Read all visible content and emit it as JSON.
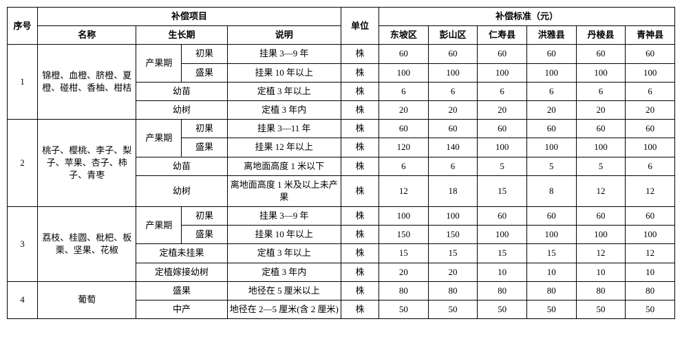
{
  "head": {
    "seq": "序号",
    "comp_item": "补偿项目",
    "name": "名称",
    "growth": "生长期",
    "desc": "说明",
    "unit": "单位",
    "comp_std": "补偿标准（元）",
    "regions": [
      "东坡区",
      "彭山区",
      "仁寿县",
      "洪雅县",
      "丹棱县",
      "青神县"
    ]
  },
  "groups": [
    {
      "seq": "1",
      "name": "锦橙、血橙、脐橙、夏橙、碰柑、香柚、柑桔",
      "rows": [
        {
          "g1": "产果期",
          "g1span": 2,
          "g2": "初果",
          "desc": "挂果 3—9 年",
          "unit": "株",
          "v": [
            "60",
            "60",
            "60",
            "60",
            "60",
            "60"
          ]
        },
        {
          "g2": "盛果",
          "desc": "挂果 10 年以上",
          "unit": "株",
          "v": [
            "100",
            "100",
            "100",
            "100",
            "100",
            "100"
          ]
        },
        {
          "g1": "幼苗",
          "g1colspan": 2,
          "desc": "定植 3 年以上",
          "unit": "株",
          "v": [
            "6",
            "6",
            "6",
            "6",
            "6",
            "6"
          ]
        },
        {
          "g1": "幼树",
          "g1colspan": 2,
          "desc": "定植 3 年内",
          "unit": "株",
          "v": [
            "20",
            "20",
            "20",
            "20",
            "20",
            "20"
          ]
        }
      ]
    },
    {
      "seq": "2",
      "name": "桃子、樱桃、李子、梨子、苹果、杏子、柿子、青枣",
      "rows": [
        {
          "g1": "产果期",
          "g1span": 2,
          "g2": "初果",
          "desc": "挂果 3—11 年",
          "unit": "株",
          "v": [
            "60",
            "60",
            "60",
            "60",
            "60",
            "60"
          ]
        },
        {
          "g2": "盛果",
          "desc": "挂果 12 年以上",
          "unit": "株",
          "v": [
            "120",
            "140",
            "100",
            "100",
            "100",
            "100"
          ]
        },
        {
          "g1": "幼苗",
          "g1colspan": 2,
          "desc": "离地面高度 1 米以下",
          "unit": "株",
          "v": [
            "6",
            "6",
            "5",
            "5",
            "5",
            "6"
          ]
        },
        {
          "g1": "幼树",
          "g1colspan": 2,
          "desc": "离地面高度 1 米及以上未产果",
          "unit": "株",
          "v": [
            "12",
            "18",
            "15",
            "8",
            "12",
            "12"
          ]
        }
      ]
    },
    {
      "seq": "3",
      "name": "荔枝、桂圆、枇杷、板栗、坚果、花椒",
      "rows": [
        {
          "g1": "产果期",
          "g1span": 2,
          "g2": "初果",
          "desc": "挂果 3—9 年",
          "unit": "株",
          "v": [
            "100",
            "100",
            "60",
            "60",
            "60",
            "60"
          ]
        },
        {
          "g2": "盛果",
          "desc": "挂果 10 年以上",
          "unit": "株",
          "v": [
            "150",
            "150",
            "100",
            "100",
            "100",
            "100"
          ]
        },
        {
          "g1": "定植未挂果",
          "g1colspan": 2,
          "desc": "定植 3 年以上",
          "unit": "株",
          "v": [
            "15",
            "15",
            "15",
            "15",
            "12",
            "12"
          ]
        },
        {
          "g1": "定植嫁接幼树",
          "g1colspan": 2,
          "desc": "定植 3 年内",
          "unit": "株",
          "v": [
            "20",
            "20",
            "10",
            "10",
            "10",
            "10"
          ]
        }
      ]
    },
    {
      "seq": "4",
      "name": "葡萄",
      "rows": [
        {
          "g1": "盛果",
          "g1colspan": 2,
          "desc": "地径在 5 厘米以上",
          "unit": "株",
          "v": [
            "80",
            "80",
            "80",
            "80",
            "80",
            "80"
          ]
        },
        {
          "g1": "中产",
          "g1colspan": 2,
          "desc": "地径在 2—5 厘米(含 2 厘米)",
          "unit": "株",
          "v": [
            "50",
            "50",
            "50",
            "50",
            "50",
            "50"
          ]
        }
      ]
    }
  ]
}
